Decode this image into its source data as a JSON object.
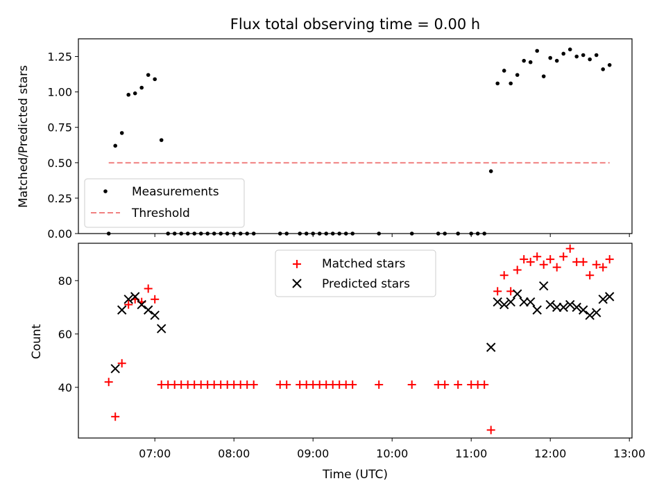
{
  "chart_data": [
    {
      "type": "scatter",
      "title": "Flux total observing time = 0.00 h",
      "ylabel": "Matched/Predicted stars",
      "xlabel": "",
      "x_ticklabels_visible": false,
      "ylim": [
        0,
        1.375
      ],
      "xlim": [
        "06:02",
        "13:02"
      ],
      "yticks": [
        "0.00",
        "0.25",
        "0.50",
        "0.75",
        "1.00",
        "1.25"
      ],
      "legend": {
        "placement": "lower-left",
        "entries": [
          "Measurements",
          "Threshold"
        ]
      },
      "series": [
        {
          "name": "Measurements",
          "style": "dot",
          "color": "#000000",
          "x": [
            "06:25",
            "06:30",
            "06:35",
            "06:40",
            "06:45",
            "06:50",
            "06:55",
            "07:00",
            "07:05",
            "07:10",
            "07:15",
            "07:20",
            "07:25",
            "07:30",
            "07:35",
            "07:40",
            "07:45",
            "07:50",
            "07:55",
            "08:00",
            "08:05",
            "08:10",
            "08:15",
            "08:35",
            "08:40",
            "08:50",
            "08:55",
            "09:00",
            "09:05",
            "09:10",
            "09:15",
            "09:20",
            "09:25",
            "09:30",
            "09:50",
            "10:15",
            "10:35",
            "10:40",
            "10:50",
            "11:00",
            "11:05",
            "11:10",
            "11:15",
            "11:20",
            "11:25",
            "11:30",
            "11:35",
            "11:40",
            "11:45",
            "11:50",
            "11:55",
            "12:00",
            "12:05",
            "12:10",
            "12:15",
            "12:20",
            "12:25",
            "12:30",
            "12:35",
            "12:40",
            "12:45"
          ],
          "y": [
            0.0,
            0.62,
            0.71,
            0.98,
            0.99,
            1.03,
            1.12,
            1.09,
            0.66,
            0.0,
            0.0,
            0.0,
            0.0,
            0.0,
            0.0,
            0.0,
            0.0,
            0.0,
            0.0,
            0.0,
            0.0,
            0.0,
            0.0,
            0.0,
            0.0,
            0.0,
            0.0,
            0.0,
            0.0,
            0.0,
            0.0,
            0.0,
            0.0,
            0.0,
            0.0,
            0.0,
            0.0,
            0.0,
            0.0,
            0.0,
            0.0,
            0.0,
            0.44,
            1.06,
            1.15,
            1.06,
            1.12,
            1.22,
            1.21,
            1.29,
            1.11,
            1.24,
            1.22,
            1.27,
            1.3,
            1.25,
            1.26,
            1.23,
            1.26,
            1.16,
            1.19
          ]
        },
        {
          "name": "Threshold",
          "style": "dashed-line",
          "color": "#f08080",
          "x": [
            "06:25",
            "12:45"
          ],
          "y": [
            0.5,
            0.5
          ]
        }
      ]
    },
    {
      "type": "scatter",
      "title": "",
      "ylabel": "Count",
      "xlabel": "Time (UTC)",
      "ylim": [
        21,
        94
      ],
      "xlim": [
        "06:02",
        "13:02"
      ],
      "yticks": [
        "40",
        "60",
        "80"
      ],
      "xticks": [
        "07:00",
        "08:00",
        "09:00",
        "10:00",
        "11:00",
        "12:00",
        "13:00"
      ],
      "legend": {
        "placement": "upper-center",
        "entries": [
          "Matched stars",
          "Predicted stars"
        ]
      },
      "series": [
        {
          "name": "Matched stars",
          "style": "plus",
          "color": "#ff0000",
          "x": [
            "06:25",
            "06:30",
            "06:35",
            "06:40",
            "06:45",
            "06:50",
            "06:55",
            "07:00",
            "07:05",
            "07:10",
            "07:15",
            "07:20",
            "07:25",
            "07:30",
            "07:35",
            "07:40",
            "07:45",
            "07:50",
            "07:55",
            "08:00",
            "08:05",
            "08:10",
            "08:15",
            "08:35",
            "08:40",
            "08:50",
            "08:55",
            "09:00",
            "09:05",
            "09:10",
            "09:15",
            "09:20",
            "09:25",
            "09:30",
            "09:50",
            "10:15",
            "10:35",
            "10:40",
            "10:50",
            "11:00",
            "11:05",
            "11:10",
            "11:15",
            "11:20",
            "11:25",
            "11:30",
            "11:35",
            "11:40",
            "11:45",
            "11:50",
            "11:55",
            "12:00",
            "12:05",
            "12:10",
            "12:15",
            "12:20",
            "12:25",
            "12:30",
            "12:35",
            "12:40",
            "12:45"
          ],
          "y": [
            42,
            29,
            49,
            71,
            73,
            72,
            77,
            73,
            41,
            41,
            41,
            41,
            41,
            41,
            41,
            41,
            41,
            41,
            41,
            41,
            41,
            41,
            41,
            41,
            41,
            41,
            41,
            41,
            41,
            41,
            41,
            41,
            41,
            41,
            41,
            41,
            41,
            41,
            41,
            41,
            41,
            41,
            24,
            76,
            82,
            76,
            84,
            88,
            87,
            89,
            86,
            88,
            85,
            89,
            92,
            87,
            87,
            82,
            86,
            85,
            88
          ]
        },
        {
          "name": "Predicted stars",
          "style": "x",
          "color": "#000000",
          "x": [
            "06:30",
            "06:35",
            "06:40",
            "06:45",
            "06:50",
            "06:55",
            "07:00",
            "07:05",
            "11:15",
            "11:20",
            "11:25",
            "11:30",
            "11:35",
            "11:40",
            "11:45",
            "11:50",
            "11:55",
            "12:00",
            "12:05",
            "12:10",
            "12:15",
            "12:20",
            "12:25",
            "12:30",
            "12:35",
            "12:40",
            "12:45"
          ],
          "y": [
            47,
            69,
            73,
            74,
            71,
            69,
            67,
            62,
            55,
            72,
            71,
            72,
            75,
            72,
            72,
            69,
            78,
            71,
            70,
            70,
            71,
            70,
            69,
            67,
            68,
            73,
            74
          ]
        }
      ]
    }
  ]
}
